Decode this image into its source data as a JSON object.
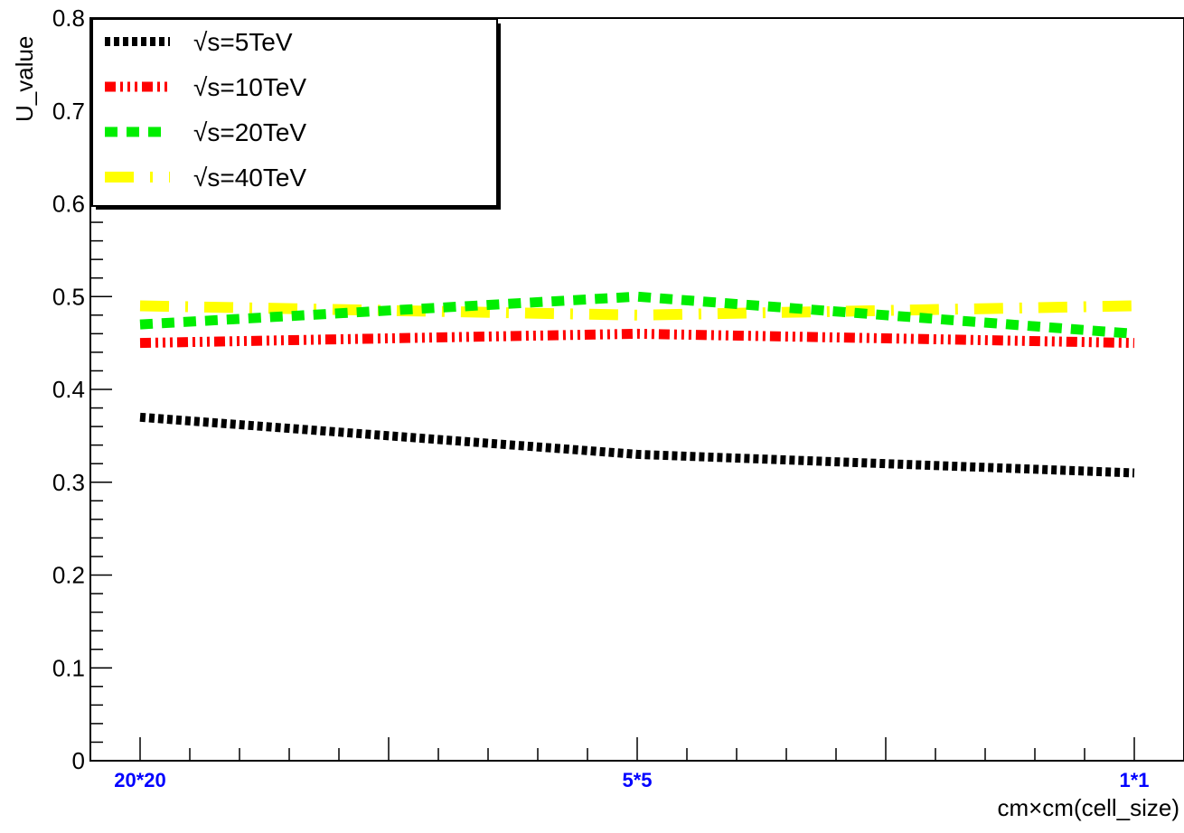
{
  "chart_data": {
    "type": "line",
    "title": "",
    "xlabel": "cm×cm(cell_size)",
    "ylabel": "U_value",
    "categories": [
      "20*20",
      "5*5",
      "1*1"
    ],
    "x": [
      0,
      1,
      2
    ],
    "xlim": [
      -0.1,
      2.1
    ],
    "ylim": [
      0,
      0.8
    ],
    "y_ticks": [
      "0",
      "0.1",
      "0.2",
      "0.3",
      "0.4",
      "0.5",
      "0.6",
      "0.7",
      "0.8"
    ],
    "grid": false,
    "legend_position": "top-left",
    "tick_label_color": "#0000ff",
    "series": [
      {
        "name": "√s=5TeV",
        "values": [
          0.37,
          0.33,
          0.31
        ],
        "color": "#000000",
        "dash": "dotted"
      },
      {
        "name": "√s=10TeV",
        "values": [
          0.45,
          0.46,
          0.45
        ],
        "color": "#ff0000",
        "dash": "dash-dot-dot"
      },
      {
        "name": "√s=20TeV",
        "values": [
          0.47,
          0.5,
          0.46
        ],
        "color": "#00ee00",
        "dash": "dashed"
      },
      {
        "name": "√s=40TeV",
        "values": [
          0.49,
          0.48,
          0.49
        ],
        "color": "#ffff00",
        "dash": "long-dash-dot"
      }
    ]
  }
}
